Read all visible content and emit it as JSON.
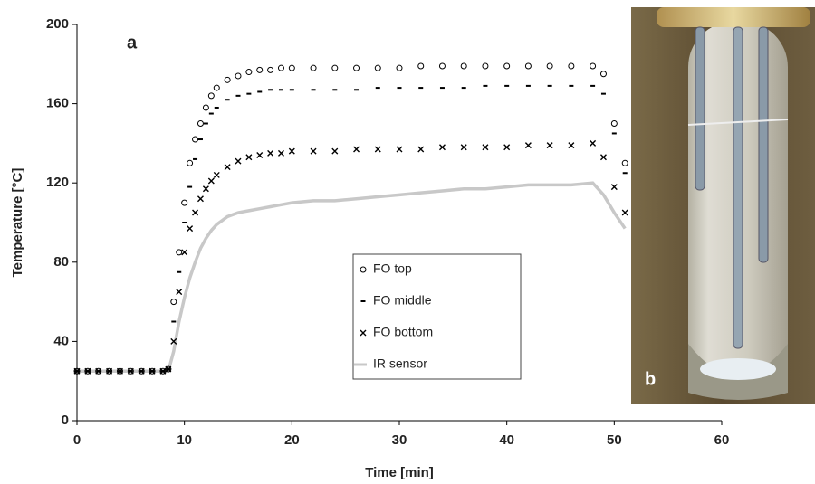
{
  "chart_data": {
    "type": "line",
    "panel_label": "a",
    "inset_label": "b",
    "x_label": "Time [min]",
    "y_label": "Temperature [°C]",
    "x": [
      0,
      1,
      2,
      3,
      4,
      5,
      6,
      7,
      8,
      8.5,
      9,
      9.5,
      10,
      10.5,
      11,
      11.5,
      12,
      12.5,
      13,
      14,
      15,
      16,
      17,
      18,
      19,
      20,
      22,
      24,
      26,
      28,
      30,
      32,
      34,
      36,
      38,
      40,
      42,
      44,
      46,
      48,
      49,
      50,
      51
    ],
    "series": [
      {
        "name": "FO top",
        "color": "#000000",
        "marker": "circle",
        "values": [
          25,
          25,
          25,
          25,
          25,
          25,
          25,
          25,
          25,
          26,
          60,
          85,
          110,
          130,
          142,
          150,
          158,
          164,
          168,
          172,
          174,
          176,
          177,
          177,
          178,
          178,
          178,
          178,
          178,
          178,
          178,
          179,
          179,
          179,
          179,
          179,
          179,
          179,
          179,
          179,
          175,
          150,
          130
        ]
      },
      {
        "name": "FO middle",
        "color": "#000000",
        "marker": "dash",
        "values": [
          25,
          25,
          25,
          25,
          25,
          25,
          25,
          25,
          25,
          26,
          50,
          75,
          100,
          118,
          132,
          142,
          150,
          155,
          158,
          162,
          164,
          165,
          166,
          167,
          167,
          167,
          167,
          167,
          167,
          168,
          168,
          168,
          168,
          168,
          169,
          169,
          169,
          169,
          169,
          169,
          165,
          145,
          125
        ]
      },
      {
        "name": "FO bottom",
        "color": "#000000",
        "marker": "x",
        "values": [
          25,
          25,
          25,
          25,
          25,
          25,
          25,
          25,
          25,
          26,
          40,
          65,
          85,
          97,
          105,
          112,
          117,
          121,
          124,
          128,
          131,
          133,
          134,
          135,
          135,
          136,
          136,
          136,
          137,
          137,
          137,
          137,
          138,
          138,
          138,
          138,
          139,
          139,
          139,
          140,
          133,
          118,
          105
        ]
      },
      {
        "name": "IR sensor",
        "color": "#c8c8c8",
        "marker": "line",
        "values": [
          25,
          25,
          25,
          25,
          25,
          25,
          25,
          25,
          25,
          25,
          35,
          50,
          62,
          72,
          80,
          87,
          92,
          96,
          99,
          103,
          105,
          106,
          107,
          108,
          109,
          110,
          111,
          111,
          112,
          113,
          114,
          115,
          116,
          117,
          117,
          118,
          119,
          119,
          119,
          120,
          114,
          105,
          97
        ]
      }
    ],
    "xlim": [
      0,
      60
    ],
    "xticks": [
      0,
      10,
      20,
      30,
      40,
      50,
      60
    ],
    "ylim": [
      0,
      200
    ],
    "yticks": [
      0,
      40,
      80,
      120,
      160,
      200
    ]
  }
}
